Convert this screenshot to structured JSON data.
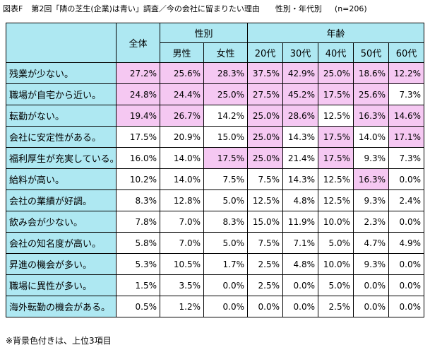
{
  "title": {
    "label": "図表F",
    "text": "第2回「隣の芝生(企業)は青い」調査／今の会社に留まりたい理由　　性別・年代別",
    "n": "(n=206)"
  },
  "colors": {
    "header_bg": "#aee8f2",
    "highlight_bg": "#f5c8f2"
  },
  "chart_data": {
    "type": "table",
    "group_headers": {
      "total": "全体",
      "gender": "性別",
      "age": "年齢"
    },
    "columns": [
      "全体",
      "男性",
      "女性",
      "20代",
      "30代",
      "40代",
      "50代",
      "60代"
    ],
    "rows": [
      {
        "label": "残業が少ない。",
        "values": [
          "27.2%",
          "25.6%",
          "28.3%",
          "37.5%",
          "42.9%",
          "25.0%",
          "18.6%",
          "12.2%"
        ],
        "highlight": [
          true,
          true,
          true,
          true,
          true,
          true,
          true,
          true
        ]
      },
      {
        "label": "職場が自宅から近い。",
        "values": [
          "24.8%",
          "24.4%",
          "25.0%",
          "27.5%",
          "45.2%",
          "17.5%",
          "25.6%",
          "7.3%"
        ],
        "highlight": [
          true,
          true,
          true,
          true,
          true,
          true,
          true,
          false
        ]
      },
      {
        "label": "転勤がない。",
        "values": [
          "19.4%",
          "26.7%",
          "14.2%",
          "25.0%",
          "28.6%",
          "12.5%",
          "16.3%",
          "14.6%"
        ],
        "highlight": [
          true,
          true,
          false,
          true,
          true,
          false,
          true,
          true
        ]
      },
      {
        "label": "会社に安定性がある。",
        "values": [
          "17.5%",
          "20.9%",
          "15.0%",
          "25.0%",
          "14.3%",
          "17.5%",
          "14.0%",
          "17.1%"
        ],
        "highlight": [
          false,
          false,
          false,
          true,
          false,
          true,
          false,
          true
        ]
      },
      {
        "label": "福利厚生が充実している。",
        "values": [
          "16.0%",
          "14.0%",
          "17.5%",
          "25.0%",
          "21.4%",
          "17.5%",
          "9.3%",
          "7.3%"
        ],
        "highlight": [
          false,
          false,
          true,
          true,
          false,
          true,
          false,
          false
        ]
      },
      {
        "label": "給料が高い。",
        "values": [
          "10.2%",
          "14.0%",
          "7.5%",
          "7.5%",
          "14.3%",
          "12.5%",
          "16.3%",
          "0.0%"
        ],
        "highlight": [
          false,
          false,
          false,
          false,
          false,
          false,
          true,
          false
        ]
      },
      {
        "label": "会社の業績が好調。",
        "values": [
          "8.3%",
          "12.8%",
          "5.0%",
          "12.5%",
          "4.8%",
          "12.5%",
          "9.3%",
          "2.4%"
        ],
        "highlight": [
          false,
          false,
          false,
          false,
          false,
          false,
          false,
          false
        ]
      },
      {
        "label": "飲み会が少ない。",
        "values": [
          "7.8%",
          "7.0%",
          "8.3%",
          "15.0%",
          "11.9%",
          "10.0%",
          "2.3%",
          "0.0%"
        ],
        "highlight": [
          false,
          false,
          false,
          false,
          false,
          false,
          false,
          false
        ]
      },
      {
        "label": "会社の知名度が高い。",
        "values": [
          "5.8%",
          "7.0%",
          "5.0%",
          "7.5%",
          "7.1%",
          "5.0%",
          "4.7%",
          "4.9%"
        ],
        "highlight": [
          false,
          false,
          false,
          false,
          false,
          false,
          false,
          false
        ]
      },
      {
        "label": "昇進の機会が多い。",
        "values": [
          "5.3%",
          "10.5%",
          "1.7%",
          "2.5%",
          "4.8%",
          "10.0%",
          "9.3%",
          "0.0%"
        ],
        "highlight": [
          false,
          false,
          false,
          false,
          false,
          false,
          false,
          false
        ]
      },
      {
        "label": "職場に異性が多い。",
        "values": [
          "1.5%",
          "3.5%",
          "0.0%",
          "2.5%",
          "0.0%",
          "5.0%",
          "0.0%",
          "0.0%"
        ],
        "highlight": [
          false,
          false,
          false,
          false,
          false,
          false,
          false,
          false
        ]
      },
      {
        "label": "海外転勤の機会がある。",
        "values": [
          "0.5%",
          "1.2%",
          "0.0%",
          "0.0%",
          "0.0%",
          "2.5%",
          "0.0%",
          "0.0%"
        ],
        "highlight": [
          false,
          false,
          false,
          false,
          false,
          false,
          false,
          false
        ]
      }
    ]
  },
  "footnote": "※背景色付きは、上位3項目"
}
